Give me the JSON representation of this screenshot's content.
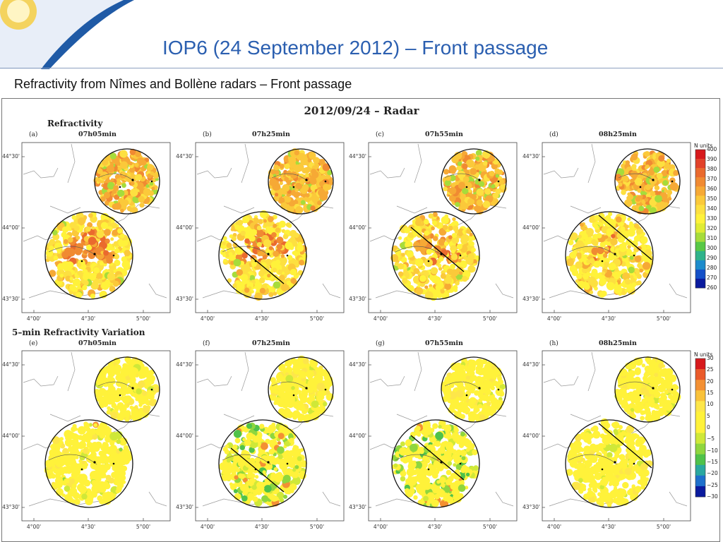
{
  "slide": {
    "title": "IOP6 (24 September 2012) – Front passage",
    "subtitle": "Refractivity from Nîmes and Bollène radars – Front passage"
  },
  "colors": {
    "title_blue": "#2b5fb0",
    "logo_blue": "#1f5aa6",
    "sun_yellow": "#f4d35e"
  },
  "chart_data": {
    "type": "heatmap",
    "title": "2012/09/24 – Radar",
    "rows": [
      {
        "title": "Refractivity",
        "panels": [
          {
            "letter": "(a)",
            "time": "07h05min"
          },
          {
            "letter": "(b)",
            "time": "07h25min"
          },
          {
            "letter": "(c)",
            "time": "07h55min"
          },
          {
            "letter": "(d)",
            "time": "08h25min"
          }
        ],
        "colorbar": {
          "title": "N units",
          "labels": [
            "400",
            "390",
            "380",
            "370",
            "360",
            "350",
            "340",
            "330",
            "320",
            "310",
            "300",
            "290",
            "280",
            "270",
            "260"
          ],
          "colors": [
            "#d7191c",
            "#e2422a",
            "#ea6a2e",
            "#f08a32",
            "#f6a935",
            "#fbc93a",
            "#fde040",
            "#fff23a",
            "#e0ec34",
            "#a6dc3b",
            "#58c846",
            "#2fb38b",
            "#1d8ccc",
            "#1450c8",
            "#0a1a9e"
          ]
        },
        "style": "refractivity"
      },
      {
        "title": "5–min Refractivity Variation",
        "panels": [
          {
            "letter": "(e)",
            "time": "07h05min"
          },
          {
            "letter": "(f)",
            "time": "07h25min"
          },
          {
            "letter": "(g)",
            "time": "07h55min"
          },
          {
            "letter": "(h)",
            "time": "08h25min"
          }
        ],
        "colorbar": {
          "title": "N units",
          "labels": [
            "30",
            "25",
            "20",
            "15",
            "10",
            "5",
            "0",
            "−5",
            "−10",
            "−15",
            "−20",
            "−25",
            "−30"
          ],
          "colors": [
            "#d7191c",
            "#ea5a2a",
            "#f39033",
            "#f9c23a",
            "#fde64a",
            "#fff23a",
            "#fff23a",
            "#cfe838",
            "#8fd63e",
            "#4fc24a",
            "#2aa8a0",
            "#1e70cc",
            "#0a1a9e"
          ]
        },
        "style": "variation"
      }
    ],
    "y_ticks": [
      "44°30'",
      "44°00'",
      "43°30'"
    ],
    "x_ticks": [
      "4°00'",
      "4°30'",
      "5°00'"
    ],
    "front_line_panels": [
      "(b)",
      "(c)",
      "(d)",
      "(f)",
      "(g)",
      "(h)"
    ],
    "grid": false
  }
}
